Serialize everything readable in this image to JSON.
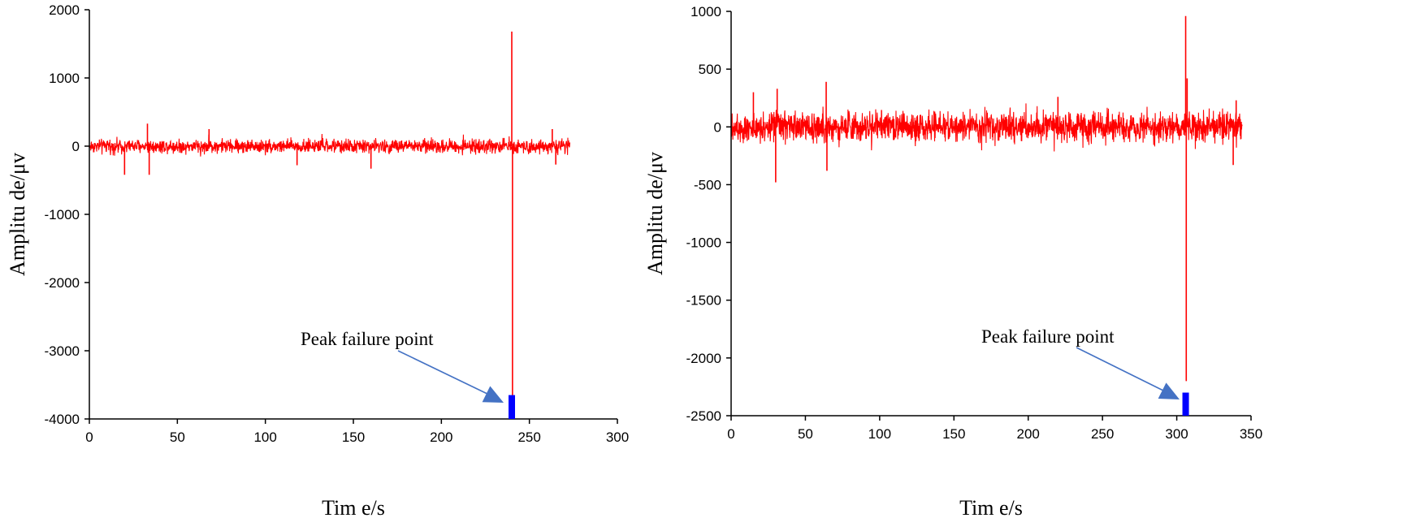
{
  "chart_data": [
    {
      "type": "line",
      "xlabel": "Tim e/s",
      "ylabel": "Amplitu de/μv",
      "xlim": [
        0,
        300
      ],
      "ylim": [
        -4000,
        2000
      ],
      "xticks": [
        0,
        50,
        100,
        150,
        200,
        250,
        300
      ],
      "yticks": [
        -4000,
        -3000,
        -2000,
        -1000,
        0,
        1000,
        2000
      ],
      "signal": {
        "color": "#ff0000",
        "x_range": [
          0,
          273
        ],
        "noise_band": [
          -150,
          150
        ],
        "spikes": [
          {
            "x": 33,
            "y": 330
          },
          {
            "x": 34,
            "y": -420
          },
          {
            "x": 20,
            "y": -420
          },
          {
            "x": 68,
            "y": 250
          },
          {
            "x": 118,
            "y": -280
          },
          {
            "x": 160,
            "y": -330
          },
          {
            "x": 240,
            "y": 1680
          },
          {
            "x": 240.4,
            "y": -3700
          },
          {
            "x": 263,
            "y": 250
          },
          {
            "x": 265,
            "y": -270
          }
        ]
      },
      "peak_marker": {
        "x": 240,
        "y": [
          -4000,
          -3650
        ],
        "color": "#0000ff"
      },
      "annotation": {
        "text": "Peak failure point",
        "arrow_color": "#4472c4"
      }
    },
    {
      "type": "line",
      "xlabel": "Tim e/s",
      "ylabel": "Amplitu de/μv",
      "xlim": [
        0,
        350
      ],
      "ylim": [
        -2500,
        1000
      ],
      "xticks": [
        0,
        50,
        100,
        150,
        200,
        250,
        300,
        350
      ],
      "yticks": [
        -2500,
        -2000,
        -1500,
        -1000,
        -500,
        0,
        500,
        1000
      ],
      "signal": {
        "color": "#ff0000",
        "x_range": [
          0,
          344
        ],
        "noise_band": [
          -190,
          190
        ],
        "spikes": [
          {
            "x": 15,
            "y": 300
          },
          {
            "x": 30,
            "y": -480
          },
          {
            "x": 31,
            "y": 330
          },
          {
            "x": 64,
            "y": 390
          },
          {
            "x": 64.5,
            "y": -380
          },
          {
            "x": 220,
            "y": 260
          },
          {
            "x": 306,
            "y": 960
          },
          {
            "x": 306.4,
            "y": -2200
          },
          {
            "x": 307,
            "y": 420
          },
          {
            "x": 338,
            "y": -330
          },
          {
            "x": 340,
            "y": 230
          }
        ]
      },
      "peak_marker": {
        "x": 306,
        "y": [
          -2500,
          -2300
        ],
        "color": "#0000ff"
      },
      "annotation": {
        "text": "Peak failure point",
        "arrow_color": "#4472c4"
      }
    }
  ]
}
